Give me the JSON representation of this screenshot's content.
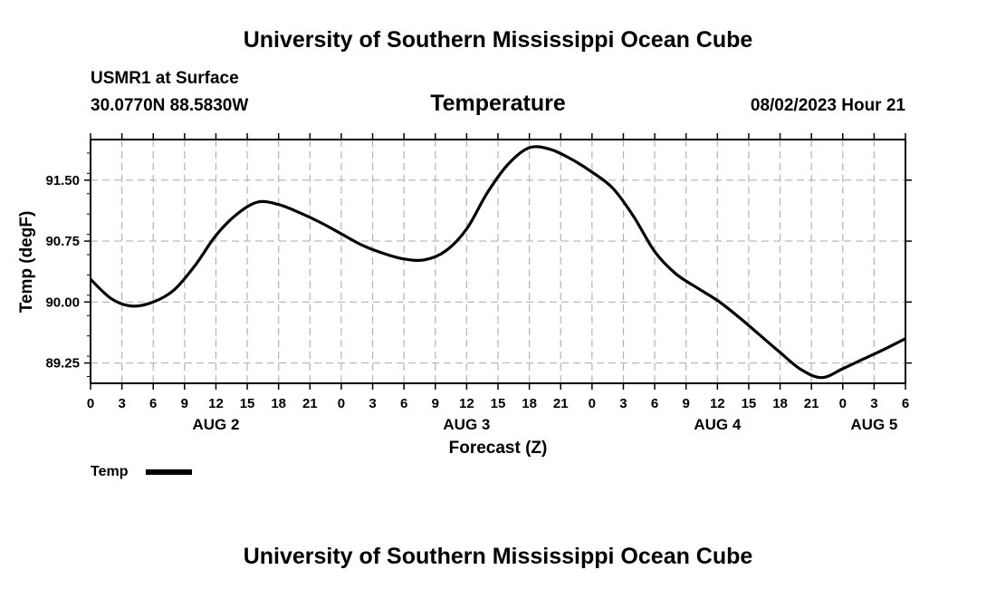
{
  "header": {
    "title": "University of Southern Mississippi Ocean Cube",
    "station": "USMR1 at Surface",
    "coords": "30.0770N  88.5830W",
    "datetime": "08/02/2023 Hour 21"
  },
  "footer": {
    "title": "University of Southern Mississippi Ocean Cube"
  },
  "chart_data": {
    "type": "line",
    "title": "Temperature",
    "xlabel": "Forecast (Z)",
    "ylabel": "Temp (degF)",
    "x_unit": "hours since AUG 2 00Z",
    "xlim": [
      0,
      78
    ],
    "ylim": [
      89.0,
      92.0
    ],
    "yticks": [
      89.25,
      90.0,
      90.75,
      91.5
    ],
    "ytick_labels": [
      "89.25",
      "90.00",
      "90.75",
      "91.50"
    ],
    "xticks": [
      0,
      3,
      6,
      9,
      12,
      15,
      18,
      21,
      24,
      27,
      30,
      33,
      36,
      39,
      42,
      45,
      48,
      51,
      54,
      57,
      60,
      63,
      66,
      69,
      72,
      75,
      78
    ],
    "xtick_labels": [
      "0",
      "3",
      "6",
      "9",
      "12",
      "15",
      "18",
      "21",
      "0",
      "3",
      "6",
      "9",
      "12",
      "15",
      "18",
      "21",
      "0",
      "3",
      "6",
      "9",
      "12",
      "15",
      "18",
      "21",
      "0",
      "3",
      "6"
    ],
    "day_labels": [
      {
        "x": 12,
        "label": "AUG 2"
      },
      {
        "x": 36,
        "label": "AUG 3"
      },
      {
        "x": 60,
        "label": "AUG 4"
      },
      {
        "x": 75,
        "label": "AUG 5"
      }
    ],
    "grid": true,
    "legend": {
      "position": "bottom-left",
      "entries": [
        "Temp"
      ]
    },
    "series": [
      {
        "name": "Temp",
        "color": "#000000",
        "x": [
          0,
          2,
          4,
          6,
          8,
          10,
          12,
          14,
          16,
          18,
          20,
          22,
          24,
          26,
          28,
          30,
          32,
          34,
          36,
          38,
          40,
          42,
          44,
          46,
          48,
          50,
          52,
          54,
          56,
          58,
          60,
          62,
          64,
          66,
          68,
          70,
          72,
          74,
          76,
          78
        ],
        "values": [
          90.28,
          90.04,
          89.95,
          90.0,
          90.15,
          90.45,
          90.82,
          91.08,
          91.23,
          91.2,
          91.1,
          90.98,
          90.84,
          90.7,
          90.6,
          90.53,
          90.52,
          90.63,
          90.9,
          91.35,
          91.7,
          91.9,
          91.88,
          91.76,
          91.6,
          91.4,
          91.05,
          90.62,
          90.35,
          90.18,
          90.02,
          89.82,
          89.6,
          89.38,
          89.17,
          89.07,
          89.18,
          89.3,
          89.42,
          89.55
        ]
      }
    ]
  }
}
